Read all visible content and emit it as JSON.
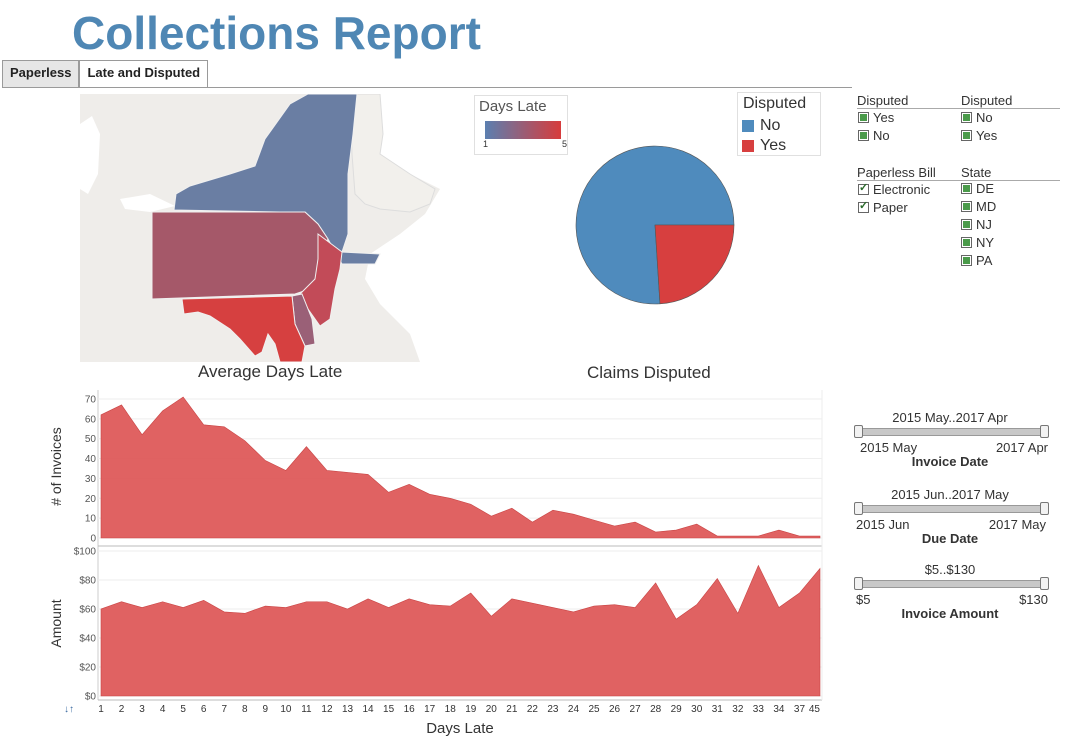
{
  "header": {
    "title": "Collections Report"
  },
  "tabs": [
    {
      "label": "Paperless"
    },
    {
      "label": "Late and Disputed"
    }
  ],
  "map": {
    "caption": "Average Days Late",
    "legend_title": "Days Late",
    "legend_min": "1",
    "legend_max": "5",
    "color_low": "#5b7fb0",
    "color_high": "#d73c3c"
  },
  "pie": {
    "caption": "Claims Disputed",
    "legend_title": "Disputed",
    "legend_items": [
      {
        "label": "No",
        "color": "#4f8bbd"
      },
      {
        "label": "Yes",
        "color": "#d73f3f"
      }
    ]
  },
  "filters": {
    "disputed_a": {
      "title": "Disputed",
      "items": [
        "Yes",
        "No"
      ]
    },
    "disputed_b": {
      "title": "Disputed",
      "items": [
        "No",
        "Yes"
      ]
    },
    "paperless": {
      "title": "Paperless Bill",
      "items": [
        "Electronic",
        "Paper"
      ]
    },
    "state": {
      "title": "State",
      "items": [
        "DE",
        "MD",
        "NJ",
        "NY",
        "PA"
      ]
    }
  },
  "sliders": {
    "invoice_date": {
      "range": "2015 May..2017 Apr",
      "min": "2015 May",
      "max": "2017 Apr",
      "caption": "Invoice Date"
    },
    "due_date": {
      "range": "2015 Jun..2017 May",
      "min": "2015 Jun",
      "max": "2017 May",
      "caption": "Due Date"
    },
    "invoice_amount": {
      "range": "$5..$130",
      "min": "$5",
      "max": "$130",
      "caption": "Invoice Amount"
    }
  },
  "chart_data": [
    {
      "type": "pie",
      "title": "Claims Disputed",
      "categories": [
        "No",
        "Yes"
      ],
      "values": [
        76,
        24
      ],
      "colors": [
        "#4f8bbd",
        "#d73f3f"
      ]
    },
    {
      "type": "area",
      "title": "",
      "xlabel": "Days Late",
      "ylabel": "# of Invoices",
      "ylim": [
        0,
        72
      ],
      "yticks": [
        0,
        10,
        20,
        30,
        40,
        50,
        60,
        70
      ],
      "categories": [
        "1",
        "2",
        "3",
        "4",
        "5",
        "6",
        "7",
        "8",
        "9",
        "10",
        "11",
        "12",
        "13",
        "14",
        "15",
        "16",
        "17",
        "18",
        "19",
        "20",
        "21",
        "22",
        "23",
        "24",
        "25",
        "26",
        "27",
        "28",
        "29",
        "30",
        "31",
        "32",
        "33",
        "34",
        "37",
        "45"
      ],
      "values": [
        62,
        67,
        52,
        64,
        71,
        57,
        56,
        49,
        39,
        34,
        46,
        34,
        33,
        32,
        23,
        27,
        22,
        20,
        17,
        11,
        15,
        8,
        14,
        12,
        9,
        6,
        8,
        3,
        4,
        7,
        1,
        1,
        1,
        4,
        1,
        1
      ],
      "color": "#dd5555"
    },
    {
      "type": "area",
      "title": "",
      "xlabel": "Days Late",
      "ylabel": "Amount",
      "ylim": [
        0,
        100
      ],
      "yticks": [
        0,
        20,
        40,
        60,
        80,
        100
      ],
      "ytick_labels": [
        "$0",
        "$20",
        "$40",
        "$60",
        "$80",
        "$100"
      ],
      "categories": [
        "1",
        "2",
        "3",
        "4",
        "5",
        "6",
        "7",
        "8",
        "9",
        "10",
        "11",
        "12",
        "13",
        "14",
        "15",
        "16",
        "17",
        "18",
        "19",
        "20",
        "21",
        "22",
        "23",
        "24",
        "25",
        "26",
        "27",
        "28",
        "29",
        "30",
        "31",
        "32",
        "33",
        "34",
        "37",
        "45"
      ],
      "values": [
        60,
        65,
        61,
        65,
        61,
        66,
        58,
        57,
        62,
        61,
        65,
        65,
        60,
        67,
        61,
        67,
        63,
        62,
        71,
        55,
        67,
        64,
        61,
        58,
        62,
        63,
        61,
        78,
        53,
        63,
        81,
        57,
        90,
        61,
        71,
        88
      ],
      "color": "#dd5555"
    }
  ],
  "chart_labels": {
    "sort_icon": "↓↑"
  }
}
